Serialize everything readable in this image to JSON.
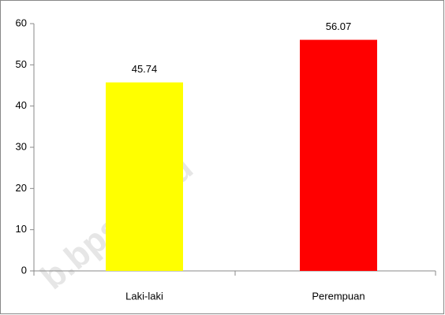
{
  "chart_data": {
    "type": "bar",
    "categories": [
      "Laki-laki",
      "Perempuan"
    ],
    "values": [
      45.74,
      56.07
    ],
    "colors": [
      "#ffff00",
      "#ff0000"
    ],
    "ylim": [
      0,
      60
    ],
    "yticks": [
      0,
      10,
      20,
      30,
      40,
      50,
      60
    ],
    "watermark": "b.bps.go.id"
  }
}
